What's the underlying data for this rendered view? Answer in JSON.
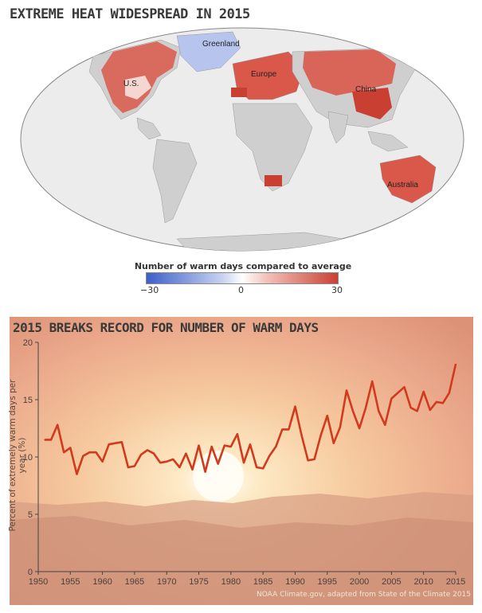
{
  "map": {
    "title": "EXTREME HEAT WIDESPREAD IN 2015",
    "labels": [
      "Greenland",
      "U.S.",
      "Europe",
      "China",
      "Australia"
    ],
    "legend_title": "Number of warm days compared to average (days)",
    "legend_ticks": [
      "−30",
      "0",
      "30"
    ],
    "colors": {
      "cold": "#3d5fc8",
      "neutral": "#ffffff",
      "warm": "#c94033",
      "land": "#cfcfcf",
      "ocean": "#eeeeee"
    }
  },
  "chart_data": {
    "type": "line",
    "title": "2015 BREAKS RECORD FOR NUMBER OF WARM DAYS",
    "xlabel": "",
    "ylabel": "Percent of extremely warm days per year (%)",
    "xlim": [
      1950,
      2015
    ],
    "ylim": [
      0,
      20
    ],
    "xticks": [
      "1950",
      "1955",
      "1960",
      "1965",
      "1970",
      "1975",
      "1980",
      "1985",
      "1990",
      "1995",
      "2000",
      "2005",
      "2010",
      "2015"
    ],
    "yticks": [
      "0",
      "5",
      "10",
      "15",
      "20"
    ],
    "color": "#d23a1e",
    "x": [
      1951,
      1952,
      1953,
      1954,
      1955,
      1956,
      1957,
      1958,
      1959,
      1960,
      1961,
      1962,
      1963,
      1964,
      1965,
      1966,
      1967,
      1968,
      1969,
      1970,
      1971,
      1972,
      1973,
      1974,
      1975,
      1976,
      1977,
      1978,
      1979,
      1980,
      1981,
      1982,
      1983,
      1984,
      1985,
      1986,
      1987,
      1988,
      1989,
      1990,
      1991,
      1992,
      1993,
      1994,
      1995,
      1996,
      1997,
      1998,
      1999,
      2000,
      2001,
      2002,
      2003,
      2004,
      2005,
      2006,
      2007,
      2008,
      2009,
      2010,
      2011,
      2012,
      2013,
      2014,
      2015
    ],
    "y": [
      11.5,
      11.5,
      12.8,
      10.4,
      10.8,
      8.5,
      10.1,
      10.4,
      10.4,
      9.6,
      11.1,
      11.2,
      11.3,
      9.1,
      9.2,
      10.2,
      10.6,
      10.3,
      9.5,
      9.6,
      9.8,
      9.1,
      10.3,
      8.9,
      11.0,
      8.7,
      10.9,
      9.4,
      11.0,
      10.9,
      12.0,
      9.5,
      11.1,
      9.1,
      9.0,
      10.1,
      10.9,
      12.4,
      12.4,
      14.4,
      11.9,
      9.7,
      9.8,
      11.9,
      13.6,
      11.2,
      12.6,
      15.8,
      14.0,
      12.5,
      14.3,
      16.6,
      14.0,
      12.8,
      15.1,
      15.6,
      16.1,
      14.3,
      14.0,
      15.7,
      14.1,
      14.8,
      14.7,
      15.6,
      18.1
    ],
    "credit": "NOAA Climate.gov, adapted from State of the Climate 2015"
  }
}
